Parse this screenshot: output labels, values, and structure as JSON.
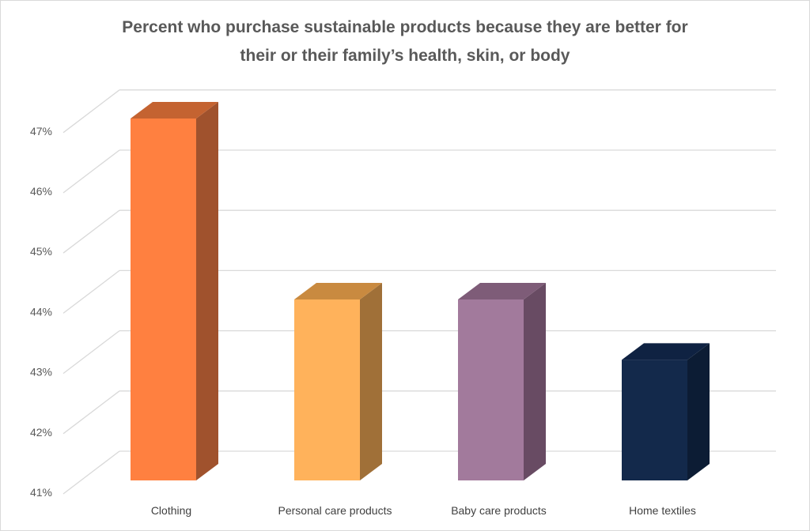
{
  "chart_data": {
    "type": "bar",
    "style": "3d-column",
    "title": [
      "Percent who purchase sustainable products because they are better for",
      "their or their family’s health, skin, or body"
    ],
    "categories": [
      "Clothing",
      "Personal care products",
      "Baby care products",
      "Home textiles"
    ],
    "values": [
      47,
      44,
      44,
      43
    ],
    "value_unit": "%",
    "ylim": [
      41,
      47
    ],
    "yticks": [
      "41%",
      "42%",
      "43%",
      "44%",
      "45%",
      "46%",
      "47%"
    ],
    "grid": true,
    "legend": "none",
    "colors": [
      {
        "front": "#FF8040",
        "side": "#A0522D",
        "top": "#C46331"
      },
      {
        "front": "#FFB25B",
        "side": "#A07038",
        "top": "#C98A40"
      },
      {
        "front": "#A27A9C",
        "side": "#684B63",
        "top": "#7E5C78"
      },
      {
        "front": "#13294B",
        "side": "#0C1C34",
        "top": "#0F2242"
      }
    ]
  }
}
